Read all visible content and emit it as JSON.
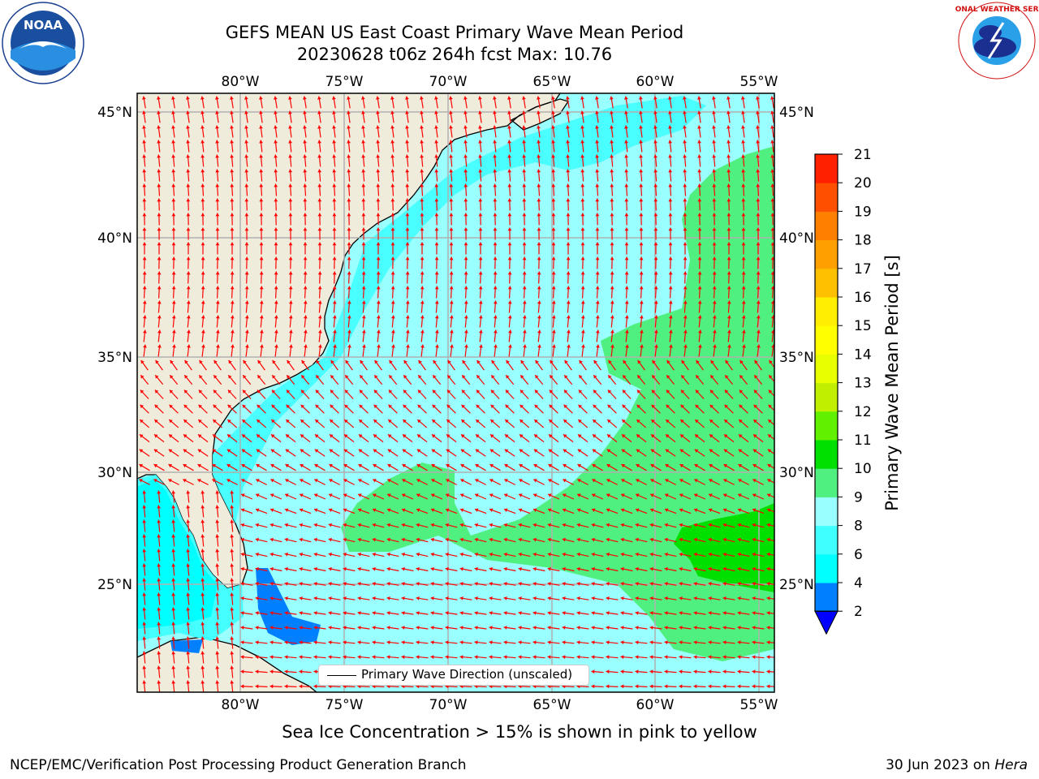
{
  "header": {
    "title_line1": "GEFS MEAN US East Coast Primary Wave Mean Period",
    "title_line2": "20230628 t06z 264h fcst   Max: 10.76"
  },
  "logos": {
    "left": {
      "icon": "noaa-logo",
      "text": "NOAA"
    },
    "right": {
      "icon": "nws-logo",
      "text": "NATIONAL WEATHER SERVICE"
    }
  },
  "map": {
    "lon_ticks": [
      "80°W",
      "75°W",
      "70°W",
      "65°W",
      "60°W",
      "55°W"
    ],
    "lat_ticks": [
      "45°N",
      "40°N",
      "35°N",
      "30°N",
      "25°N"
    ],
    "colors": {
      "land": "#efecdc",
      "grid": "#b0b0b0",
      "arrow": "#ff0000",
      "coast": "#000000"
    },
    "legend_label": "Primary Wave Direction (unscaled)"
  },
  "colorbar": {
    "label": "Primary Wave Mean Period [s]",
    "ticks": [
      "2",
      "4",
      "6",
      "8",
      "9",
      "10",
      "11",
      "12",
      "13",
      "14",
      "15",
      "16",
      "17",
      "18",
      "19",
      "20",
      "21"
    ],
    "colors": [
      "#0080ff",
      "#00ffff",
      "#40ffff",
      "#99ffff",
      "#50f080",
      "#00e000",
      "#60f000",
      "#c0f000",
      "#e8ff00",
      "#ffff00",
      "#ffee00",
      "#ffc000",
      "#ffa000",
      "#ff8000",
      "#ff5000",
      "#ff2000"
    ],
    "under_color": "#0000ff"
  },
  "notes": {
    "ice": "Sea Ice Concentration > 15% is shown in pink to yellow"
  },
  "footer": {
    "left": "NCEP/EMC/Verification Post Processing Product Generation Branch",
    "right_date": "30 Jun 2023 on ",
    "right_host": "Hera"
  }
}
